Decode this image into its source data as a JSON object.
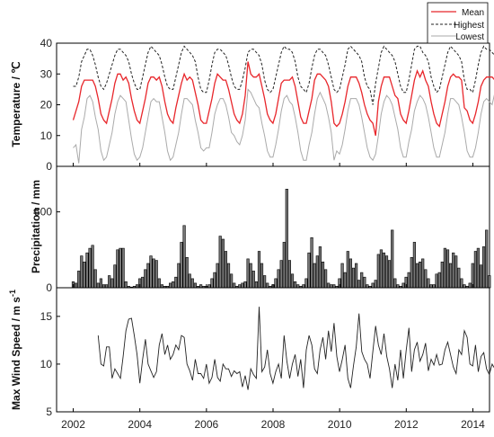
{
  "chart_data": [
    {
      "type": "line",
      "ylabel": "Temperature / ℃",
      "ylim": [
        0,
        40
      ],
      "yticks": [
        0,
        10,
        20,
        30,
        40
      ],
      "legend": {
        "placement": "top-right"
      },
      "x_start": 2002.0,
      "x_step": 0.0833,
      "series": [
        {
          "name": "Mean",
          "color": "#e8262b",
          "style": "solid",
          "values": [
            15,
            18,
            21,
            26,
            28,
            28,
            28,
            28,
            26,
            22,
            17,
            15,
            14,
            18,
            22,
            27,
            30,
            30,
            28,
            29,
            27,
            22,
            18,
            15,
            14,
            18,
            22,
            27,
            29,
            29,
            28,
            29,
            26,
            21,
            17,
            15,
            14,
            19,
            23,
            27,
            30,
            28,
            29,
            28,
            24,
            20,
            15,
            14,
            14,
            18,
            22,
            27,
            30,
            29,
            28,
            28,
            25,
            21,
            17,
            15,
            14,
            17,
            23,
            34,
            30,
            29,
            29,
            30,
            26,
            22,
            17,
            15,
            14,
            17,
            22,
            27,
            28,
            28,
            28,
            29,
            26,
            21,
            16,
            14,
            14,
            18,
            22,
            28,
            30,
            30,
            29,
            28,
            26,
            21,
            14,
            13,
            14,
            17,
            21,
            26,
            29,
            29,
            29,
            27,
            24,
            20,
            17,
            15,
            14,
            10,
            21,
            26,
            29,
            29,
            29,
            26,
            23,
            22,
            17,
            15,
            14,
            18,
            23,
            28,
            31,
            29,
            31,
            28,
            26,
            21,
            17,
            14,
            13,
            17,
            21,
            26,
            29,
            30,
            29,
            29,
            28,
            19,
            18,
            15,
            14,
            17,
            21,
            26,
            28,
            29,
            29,
            29,
            28
          ]
        },
        {
          "name": "Highest",
          "color": "#222222",
          "style": "dashed",
          "values": [
            26,
            26,
            29,
            34,
            36,
            38,
            38,
            36,
            33,
            29,
            26,
            25,
            27,
            30,
            33,
            36,
            38,
            38,
            37,
            36,
            34,
            30,
            27,
            25,
            25,
            29,
            33,
            37,
            39,
            38,
            37,
            36,
            33,
            29,
            26,
            25,
            25,
            29,
            33,
            37,
            39,
            38,
            37,
            36,
            34,
            29,
            25,
            24,
            24,
            28,
            33,
            37,
            38,
            38,
            37,
            36,
            33,
            29,
            26,
            25,
            25,
            28,
            32,
            37,
            38,
            38,
            37,
            36,
            33,
            28,
            25,
            24,
            25,
            29,
            33,
            37,
            39,
            38,
            38,
            37,
            34,
            29,
            26,
            25,
            24,
            27,
            32,
            36,
            38,
            38,
            37,
            36,
            33,
            29,
            25,
            24,
            25,
            29,
            33,
            38,
            39,
            38,
            37,
            36,
            34,
            29,
            26,
            25,
            20,
            27,
            32,
            37,
            39,
            38,
            37,
            36,
            34,
            30,
            26,
            24,
            24,
            28,
            33,
            38,
            39,
            39,
            37,
            36,
            34,
            29,
            26,
            24,
            25,
            29,
            33,
            37,
            39,
            38,
            37,
            36,
            34,
            28,
            25,
            25,
            24,
            28,
            33,
            37,
            39,
            38,
            38,
            37,
            36
          ]
        },
        {
          "name": "Lowest",
          "color": "#aaaaaa",
          "style": "solid",
          "values": [
            6,
            7,
            1,
            12,
            16,
            22,
            23,
            21,
            16,
            12,
            5,
            2,
            3,
            7,
            11,
            17,
            21,
            23,
            22,
            21,
            15,
            9,
            4,
            2,
            3,
            6,
            11,
            16,
            21,
            22,
            21,
            21,
            16,
            11,
            5,
            2,
            3,
            7,
            11,
            17,
            22,
            22,
            21,
            20,
            15,
            11,
            6,
            5,
            6,
            6,
            11,
            17,
            20,
            22,
            22,
            20,
            16,
            11,
            10,
            8,
            7,
            10,
            15,
            25,
            24,
            22,
            20,
            19,
            14,
            10,
            5,
            3,
            3,
            7,
            12,
            18,
            22,
            23,
            21,
            20,
            16,
            11,
            5,
            2,
            2,
            7,
            11,
            17,
            22,
            24,
            22,
            20,
            16,
            11,
            2,
            5,
            4,
            7,
            12,
            18,
            22,
            22,
            22,
            20,
            16,
            11,
            6,
            3,
            2,
            4,
            10,
            17,
            21,
            23,
            22,
            20,
            16,
            12,
            6,
            3,
            3,
            8,
            12,
            18,
            21,
            23,
            22,
            20,
            16,
            11,
            6,
            3,
            3,
            7,
            11,
            17,
            22,
            22,
            21,
            20,
            16,
            11,
            5,
            3,
            3,
            6,
            11,
            17,
            21,
            22,
            21,
            20,
            24,
            3
          ]
        }
      ]
    },
    {
      "type": "bar",
      "ylabel": "Precipitation / mm",
      "ylim": [
        0,
        800
      ],
      "yticks": [
        0,
        500
      ],
      "x_start": 2002.0,
      "x_step": 0.0833,
      "series": [
        {
          "color": "#777777",
          "values": [
            40,
            30,
            110,
            210,
            170,
            230,
            260,
            280,
            120,
            30,
            60,
            20,
            20,
            80,
            60,
            150,
            250,
            260,
            260,
            40,
            10,
            5,
            10,
            20,
            60,
            70,
            120,
            160,
            210,
            190,
            180,
            60,
            20,
            10,
            10,
            30,
            40,
            70,
            160,
            300,
            410,
            200,
            90,
            60,
            30,
            10,
            20,
            10,
            10,
            20,
            60,
            100,
            160,
            340,
            320,
            240,
            160,
            90,
            30,
            10,
            20,
            30,
            40,
            190,
            160,
            110,
            40,
            240,
            160,
            80,
            30,
            10,
            20,
            60,
            120,
            180,
            300,
            650,
            180,
            90,
            40,
            20,
            10,
            20,
            60,
            230,
            330,
            160,
            210,
            270,
            170,
            120,
            30,
            20,
            20,
            10,
            60,
            160,
            100,
            240,
            190,
            130,
            160,
            50,
            100,
            70,
            20,
            10,
            30,
            50,
            220,
            250,
            230,
            210,
            180,
            380,
            60,
            20,
            10,
            30,
            70,
            100,
            200,
            300,
            160,
            170,
            190,
            120,
            60,
            20,
            20,
            90,
            100,
            170,
            260,
            250,
            160,
            230,
            210,
            130,
            60,
            20,
            10,
            30,
            160,
            240,
            260,
            150,
            270,
            380,
            80
          ]
        }
      ]
    },
    {
      "type": "line",
      "ylabel": "Max Wind Speed / m s-1",
      "ylabel_main": "Max Wind Speed / m s",
      "ylabel_sup": "-1",
      "ylim": [
        5,
        18
      ],
      "yticks": [
        5,
        10,
        15
      ],
      "x_start": 2002.75,
      "x_step": 0.0833,
      "series": [
        {
          "color": "#222222",
          "style": "solid",
          "values": [
            13,
            10,
            9.8,
            11.8,
            11.8,
            8.5,
            9.5,
            9,
            8.5,
            10.8,
            13.5,
            14.7,
            14.8,
            13,
            11,
            8,
            10.5,
            12.6,
            10,
            9.3,
            8.6,
            9.2,
            12,
            13.2,
            11,
            12,
            10.5,
            11,
            12,
            11.5,
            13,
            12.8,
            10,
            9.3,
            8.3,
            10.5,
            9,
            9,
            8.5,
            10,
            8,
            8.6,
            10.5,
            8.6,
            8.2,
            10,
            9.5,
            9.5,
            8.7,
            9.3,
            9,
            9.2,
            7.6,
            8.8,
            7.3,
            9.5,
            8.9,
            8.5,
            16,
            9.2,
            9.7,
            11.5,
            9,
            8,
            9.2,
            10,
            8.5,
            13,
            10.3,
            8.5,
            10,
            11,
            8.7,
            10.5,
            7.5,
            11.5,
            13,
            12,
            9.5,
            9,
            11.5,
            12.8,
            10.5,
            13.5,
            11.3,
            14.3,
            10.8,
            9.2,
            10.5,
            12,
            8.5,
            7.5,
            9.8,
            11.8,
            15.3,
            11.3,
            10.5,
            10,
            8.5,
            11.3,
            14,
            12,
            11,
            13.2,
            10.8,
            9.5,
            7.5,
            10,
            8.3,
            11.5,
            8.5,
            11.4,
            13.8,
            9.2,
            11.5,
            12.3,
            10.3,
            11,
            12.2,
            9.3,
            10.5,
            9.9,
            11,
            9.9,
            10,
            11.5,
            12.3,
            11,
            9.7,
            9,
            11.5,
            11,
            13.5,
            12.8,
            10,
            9.8,
            12,
            9.2,
            10.8,
            11.2,
            9.5,
            8.9,
            10,
            9.5,
            11.8,
            10,
            12.5,
            9.8,
            9.5,
            11,
            12.5,
            11.5,
            9,
            8.8,
            11,
            14.5,
            10
          ]
        }
      ]
    }
  ],
  "x_axis": {
    "range": [
      2001.5,
      2014.5
    ],
    "ticks": [
      2002,
      2004,
      2006,
      2008,
      2010,
      2012,
      2014
    ],
    "tick_labels": [
      "2002",
      "2004",
      "2006",
      "2008",
      "2010",
      "2012",
      "2014"
    ]
  }
}
